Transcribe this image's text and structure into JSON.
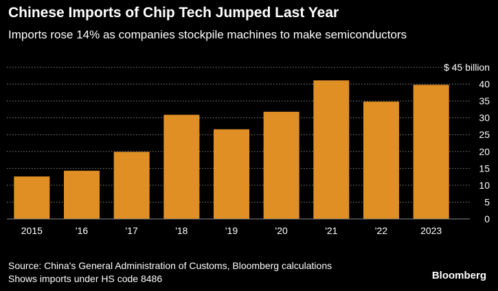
{
  "title": "Chinese Imports of Chip Tech Jumped Last Year",
  "subtitle": "Imports rose 14% as companies stockpile machines to make semiconductors",
  "source_line": "Source: China's General Administration of Customs, Bloomberg calculations",
  "note_line": "Shows imports under HS code 8486",
  "brand": "Bloomberg",
  "colors": {
    "bar": "#e08f25",
    "background": "#000000",
    "text": "#ffffff",
    "grid": "#8a8a8a"
  },
  "chart_data": {
    "type": "bar",
    "categories": [
      "2015",
      "'16",
      "'17",
      "'18",
      "'19",
      "'20",
      "'21",
      "'22",
      "2023"
    ],
    "values": [
      12.6,
      14.3,
      19.9,
      30.9,
      26.6,
      31.8,
      41.1,
      34.8,
      39.8
    ],
    "title": "Chinese Imports of Chip Tech Jumped Last Year",
    "subtitle": "Imports rose 14% as companies stockpile machines to make semiconductors",
    "xlabel": "",
    "ylabel": "",
    "ylim": [
      0,
      45
    ],
    "yticks": [
      0,
      5,
      10,
      15,
      20,
      25,
      30,
      35,
      40,
      45
    ],
    "ytick_labels": [
      "0",
      "5",
      "10",
      "15",
      "20",
      "25",
      "30",
      "35",
      "40",
      "$ 45 billion"
    ],
    "grid": true,
    "y_axis_side": "right"
  }
}
